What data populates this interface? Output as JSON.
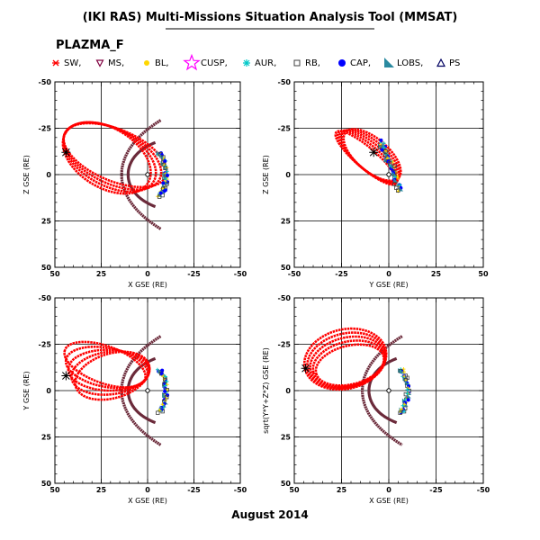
{
  "header": {
    "title": "(IKI RAS) Multi-Missions Situation Analysis Tool (MMSAT)",
    "mission": "PLAZMA_F"
  },
  "footer": {
    "date": "August 2014"
  },
  "legend": [
    {
      "label": "SW,",
      "color": "#ff0000",
      "icon": "sw-marker-icon"
    },
    {
      "label": "MS,",
      "color": "#800040",
      "icon": "ms-triangle-icon"
    },
    {
      "label": "BL,",
      "color": "#ffd700",
      "icon": "bl-star-icon"
    },
    {
      "label": "CUSP,",
      "color": "#ff00ff",
      "icon": "cusp-star-icon"
    },
    {
      "label": "AUR,",
      "color": "#00c8c8",
      "icon": "aur-asterisk-icon"
    },
    {
      "label": "RB,",
      "color": "#404040",
      "icon": "rb-square-icon"
    },
    {
      "label": "CAP,",
      "color": "#0000ff",
      "icon": "cap-dot-icon"
    },
    {
      "label": "LOBS,",
      "color": "#2a8aa0",
      "icon": "lobs-triangle-icon"
    },
    {
      "label": "PS",
      "color": "#000060",
      "icon": "ps-triangle-icon"
    }
  ],
  "colors": {
    "orbit": "#ff0000",
    "magnetopause": "#6b2a3a",
    "bowshock": "#6b2a3a",
    "earth": "#000000",
    "grid": "#000000"
  },
  "chart_data": [
    {
      "type": "scatter",
      "panel": "top-left",
      "title": "",
      "xlabel": "X GSE (RE)",
      "ylabel": "Z GSE (RE)",
      "xlim": [
        50,
        -50
      ],
      "ylim": [
        -50,
        50
      ],
      "xticks": [
        "50",
        "25",
        "0",
        "-25",
        "-50"
      ],
      "yticks": [
        "50",
        "25",
        "0",
        "-25",
        "-50"
      ],
      "grid": true,
      "boundaries": true,
      "orbit_projection": "xz",
      "note_scale": 1
    },
    {
      "type": "scatter",
      "panel": "top-right",
      "title": "",
      "xlabel": "Y GSE (RE)",
      "ylabel": "Z GSE (RE)",
      "xlim": [
        -50,
        50
      ],
      "ylim": [
        -50,
        50
      ],
      "xticks": [
        "-50",
        "-25",
        "0",
        "25",
        "50"
      ],
      "yticks": [
        "50",
        "25",
        "0",
        "-25",
        "-50"
      ],
      "grid": true,
      "boundaries": false,
      "orbit_projection": "yz",
      "note_scale": 1
    },
    {
      "type": "scatter",
      "panel": "bottom-left",
      "title": "",
      "xlabel": "X GSE (RE)",
      "ylabel": "Y GSE (RE)",
      "xlim": [
        50,
        -50
      ],
      "ylim": [
        -50,
        50
      ],
      "xticks": [
        "50",
        "25",
        "0",
        "-25",
        "-50"
      ],
      "yticks": [
        "-50",
        "-25",
        "0",
        "25",
        "50"
      ],
      "grid": true,
      "boundaries": true,
      "orbit_projection": "xy",
      "note_scale": 1
    },
    {
      "type": "scatter",
      "panel": "bottom-right",
      "title": "",
      "xlabel": "X GSE (RE)",
      "ylabel": "sqrt(Y*Y+Z*Z) GSE (RE)",
      "xlim": [
        50,
        -50
      ],
      "ylim": [
        -50,
        50
      ],
      "xticks": [
        "50",
        "25",
        "0",
        "-25",
        "-50"
      ],
      "yticks": [
        "-50",
        "-25",
        "0",
        "25",
        "50"
      ],
      "grid": true,
      "boundaries": true,
      "orbit_projection": "xr",
      "note_scale": 1
    }
  ]
}
